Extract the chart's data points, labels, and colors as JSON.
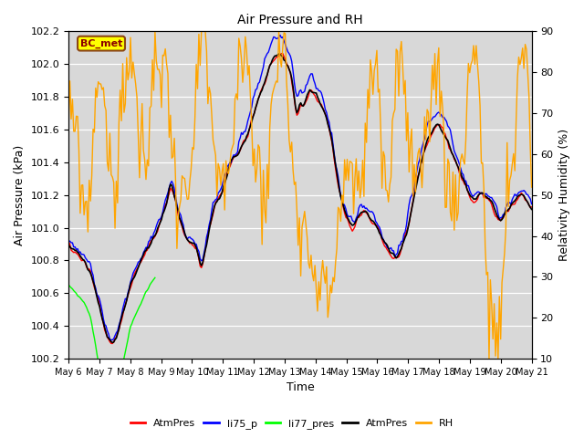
{
  "title": "Air Pressure and RH",
  "ylabel_left": "Air Pressure (kPa)",
  "ylabel_right": "Relativity Humidity (%)",
  "xlabel": "Time",
  "ylim_left": [
    100.2,
    102.2
  ],
  "ylim_right": [
    10,
    90
  ],
  "annotation": "BC_met",
  "x_tick_labels": [
    "May 6",
    "May 7",
    "May 8",
    "May 9",
    "May 10",
    "May 11",
    "May 12",
    "May 13",
    "May 14",
    "May 15",
    "May 16",
    "May 17",
    "May 18",
    "May 19",
    "May 20",
    "May 21"
  ],
  "legend_labels": [
    "AtmPres",
    "li75_p",
    "li77_pres",
    "AtmPres",
    "RH"
  ],
  "legend_colors": [
    "red",
    "blue",
    "lime",
    "black",
    "orange"
  ],
  "bg_color": "#d8d8d8",
  "fig_bg": "#ffffff",
  "linewidth": 1.0,
  "title_fontsize": 10,
  "label_fontsize": 9,
  "tick_fontsize": 8,
  "xtick_fontsize": 7
}
